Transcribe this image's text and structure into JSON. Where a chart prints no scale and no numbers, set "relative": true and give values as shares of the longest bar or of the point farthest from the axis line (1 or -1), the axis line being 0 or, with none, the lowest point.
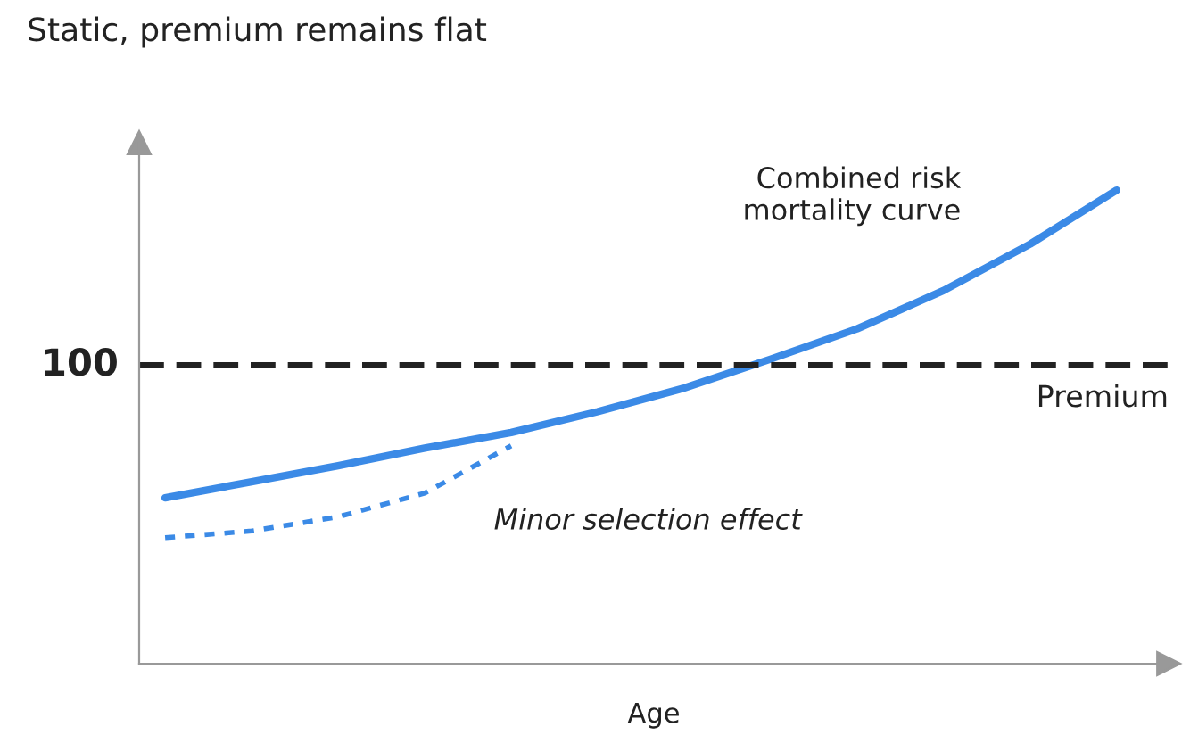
{
  "chart_data": {
    "type": "line",
    "title": "Static, premium remains flat",
    "xlabel": "Age",
    "relative": true,
    "categories": [
      null,
      null,
      null,
      null,
      null,
      null,
      null,
      null,
      null,
      null,
      null,
      null
    ],
    "series": [
      {
        "color": "#3b8ae6",
        "line_style": "solid",
        "values": [
          0.35,
          0.384,
          0.418,
          0.455,
          0.488,
          0.532,
          0.582,
          0.643,
          0.707,
          0.788,
          0.886,
          1.0
        ]
      },
      {
        "color": "#3b8ae6",
        "line_style": "dotted",
        "values": [
          0.266,
          0.28,
          0.31,
          0.36,
          0.46,
          null,
          null,
          null,
          null,
          null,
          null,
          null
        ]
      }
    ],
    "ref_lines": [
      {
        "axis": "y",
        "value": 0.63,
        "label": "Premium",
        "color": "#222222",
        "line_style": "dashed"
      }
    ],
    "annotations": [
      "100",
      "Combined risk\nmortality curve",
      "Minor selection effect"
    ],
    "grid": false,
    "marker": "none"
  }
}
